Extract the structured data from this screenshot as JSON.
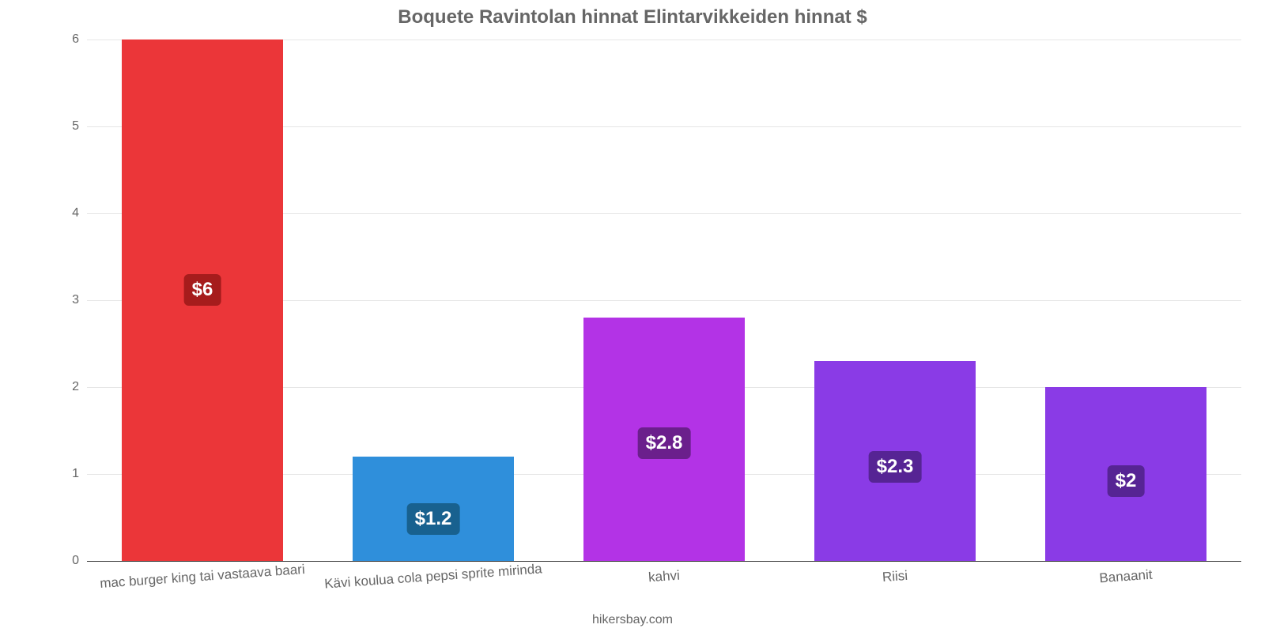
{
  "chart": {
    "type": "bar",
    "title": "Boquete Ravintolan hinnat Elintarvikkeiden hinnat $",
    "title_fontsize": 24,
    "title_color": "#666666",
    "attribution": "hikersbay.com",
    "background_color": "#ffffff",
    "grid_color": "#e6e6e6",
    "baseline_color": "#333333",
    "axis_label_color": "#666666",
    "axis_label_fontsize": 16,
    "x_label_fontsize": 17,
    "x_label_rotate_deg": -4,
    "ylim": [
      0,
      6
    ],
    "ytick_step": 1,
    "yticks": [
      "0",
      "1",
      "2",
      "3",
      "4",
      "5",
      "6"
    ],
    "bar_width_pct": 70,
    "value_label_fontsize": 24,
    "value_label_color": "#ffffff",
    "bars": [
      {
        "category": "mac burger king tai vastaava baari",
        "value": 6.0,
        "display": "$6",
        "fill": "#eb3639",
        "badge_bg": "#a61c1c"
      },
      {
        "category": "Kävi koulua cola pepsi sprite mirinda",
        "value": 1.2,
        "display": "$1.2",
        "fill": "#2f8fdb",
        "badge_bg": "#18618f"
      },
      {
        "category": "kahvi",
        "value": 2.8,
        "display": "$2.8",
        "fill": "#b333e6",
        "badge_bg": "#6b1f8c"
      },
      {
        "category": "Riisi",
        "value": 2.3,
        "display": "$2.3",
        "fill": "#8a3be6",
        "badge_bg": "#562494"
      },
      {
        "category": "Banaanit",
        "value": 2.0,
        "display": "$2",
        "fill": "#8a3be6",
        "badge_bg": "#562494"
      }
    ]
  }
}
